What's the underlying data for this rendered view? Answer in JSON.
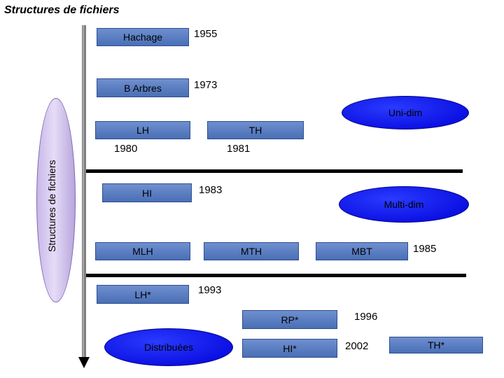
{
  "title": "Structures de fichiers",
  "axis_label": "Structures de fichiers",
  "boxes": {
    "hachage": "Hachage",
    "b_arbres": "B Arbres",
    "lh": "LH",
    "th": "TH",
    "hi": "HI",
    "mlh": "MLH",
    "mth": "MTH",
    "mbt": "MBT",
    "lh_star": "LH*",
    "rp_star": "RP*",
    "hi_star": "HI*",
    "th_star": "TH*"
  },
  "years": {
    "hachage": "1955",
    "b_arbres": "1973",
    "lh": "1980",
    "th": "1981",
    "hi": "1983",
    "mbt": "1985",
    "lh_star": "1993",
    "rp_star": "1996",
    "hi_star": "2002"
  },
  "categories": {
    "uni_dim": "Uni-dim",
    "multi_dim": "Multi-dim",
    "distribuees": "Distribuées"
  },
  "colors": {
    "box": "#4a6fb6",
    "category": "#0000d8",
    "side_ellipse": "#d9ccf2"
  }
}
